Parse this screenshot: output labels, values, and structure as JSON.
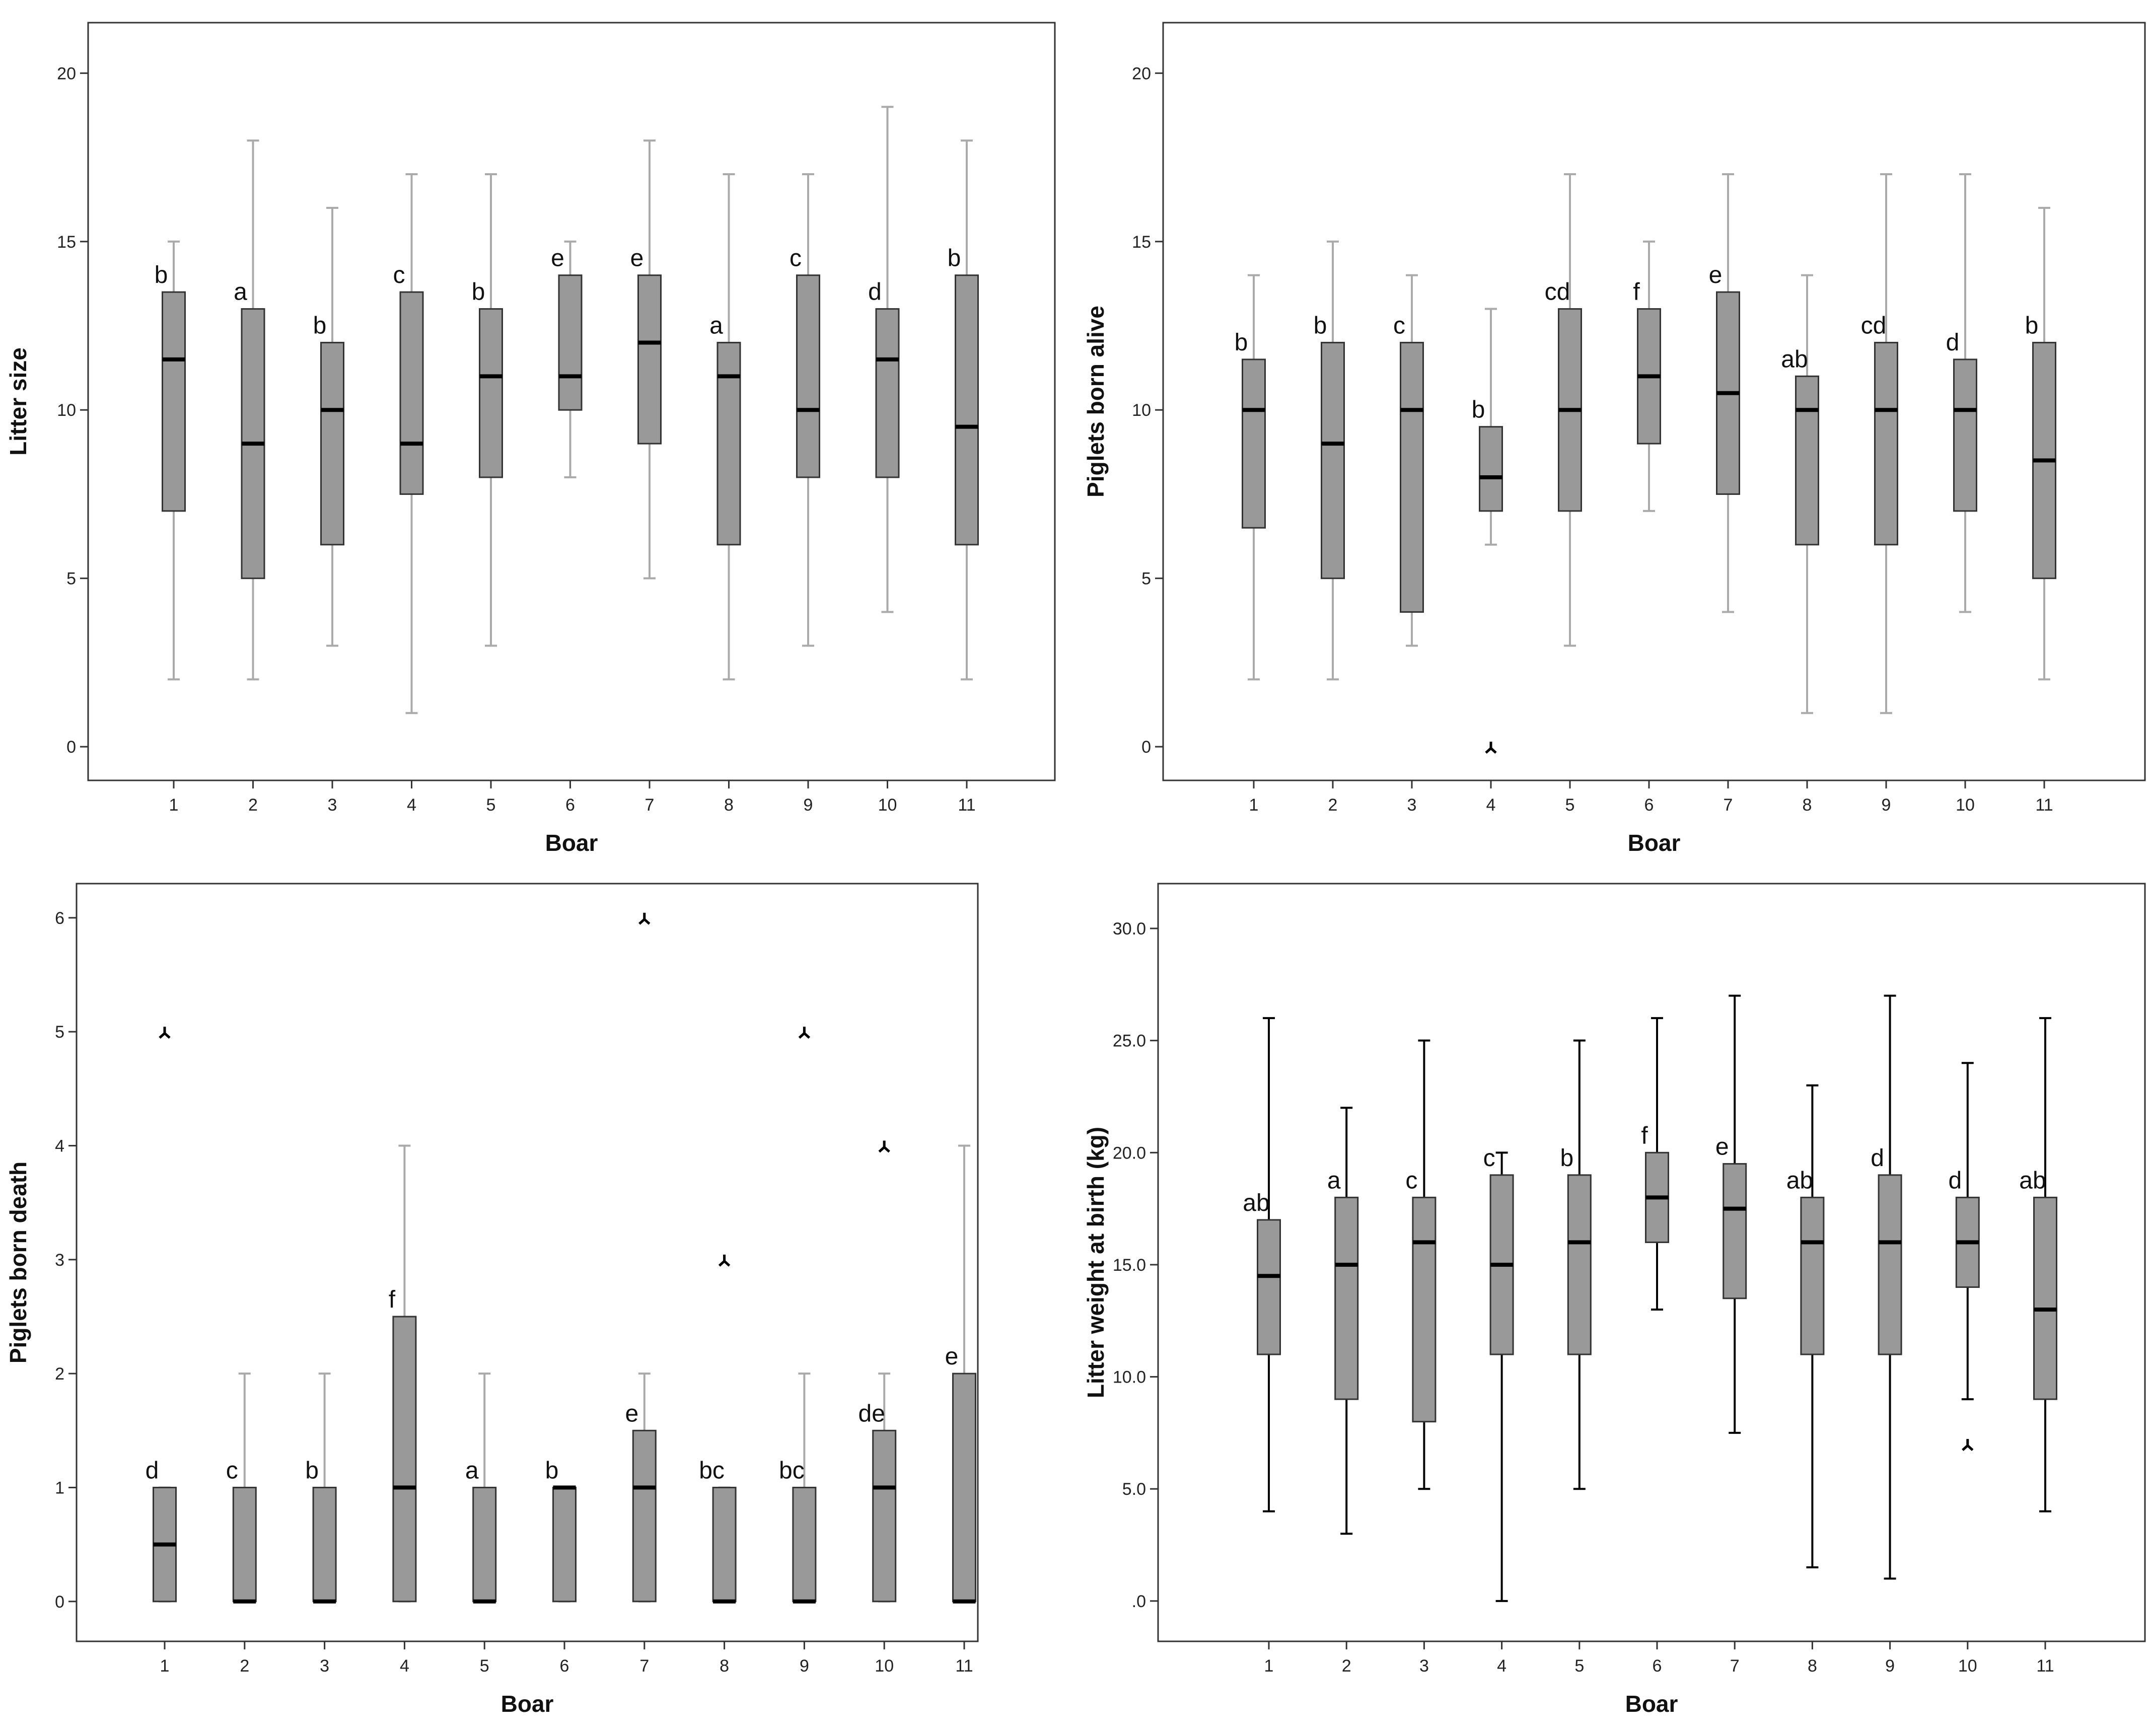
{
  "chart_data": [
    {
      "type": "boxplot",
      "xlabel": "Boar",
      "ylabel": "Litter size",
      "categories": [
        "1",
        "2",
        "3",
        "4",
        "5",
        "6",
        "7",
        "8",
        "9",
        "10",
        "11"
      ],
      "ylim": [
        -1,
        21.5
      ],
      "yticks": [
        0,
        5,
        10,
        15,
        20
      ],
      "ytick_labels": [
        "0",
        "5",
        "10",
        "15",
        "20"
      ],
      "grid": false,
      "whisker_color": "#aaaaaa",
      "boxes": [
        {
          "min": 2,
          "q1": 7,
          "median": 11.5,
          "q3": 13.5,
          "max": 15,
          "letter": "b"
        },
        {
          "min": 2,
          "q1": 5,
          "median": 9,
          "q3": 13,
          "max": 18,
          "letter": "a"
        },
        {
          "min": 3,
          "q1": 6,
          "median": 10,
          "q3": 12,
          "max": 16,
          "letter": "b"
        },
        {
          "min": 1,
          "q1": 7.5,
          "median": 9,
          "q3": 13.5,
          "max": 17,
          "letter": "c"
        },
        {
          "min": 3,
          "q1": 8,
          "median": 11,
          "q3": 13,
          "max": 17,
          "letter": "b"
        },
        {
          "min": 8,
          "q1": 10,
          "median": 11,
          "q3": 14,
          "max": 15,
          "letter": "e"
        },
        {
          "min": 5,
          "q1": 9,
          "median": 12,
          "q3": 14,
          "max": 18,
          "letter": "e"
        },
        {
          "min": 2,
          "q1": 6,
          "median": 11,
          "q3": 12,
          "max": 17,
          "letter": "a"
        },
        {
          "min": 3,
          "q1": 8,
          "median": 10,
          "q3": 14,
          "max": 17,
          "letter": "c"
        },
        {
          "min": 4,
          "q1": 8,
          "median": 11.5,
          "q3": 13,
          "max": 19,
          "letter": "d"
        },
        {
          "min": 2,
          "q1": 6,
          "median": 9.5,
          "q3": 14,
          "max": 18,
          "letter": "b"
        }
      ],
      "outliers": []
    },
    {
      "type": "boxplot",
      "xlabel": "Boar",
      "ylabel": "Piglets born alive",
      "categories": [
        "1",
        "2",
        "3",
        "4",
        "5",
        "6",
        "7",
        "8",
        "9",
        "10",
        "11"
      ],
      "ylim": [
        -1,
        21.5
      ],
      "yticks": [
        0,
        5,
        10,
        15,
        20
      ],
      "ytick_labels": [
        "0",
        "5",
        "10",
        "15",
        "20"
      ],
      "grid": false,
      "whisker_color": "#aaaaaa",
      "boxes": [
        {
          "min": 2,
          "q1": 6.5,
          "median": 10,
          "q3": 11.5,
          "max": 14,
          "letter": "b"
        },
        {
          "min": 2,
          "q1": 5,
          "median": 9,
          "q3": 12,
          "max": 15,
          "letter": "b"
        },
        {
          "min": 3,
          "q1": 4,
          "median": 10,
          "q3": 12,
          "max": 14,
          "letter": "c"
        },
        {
          "min": 6,
          "q1": 7,
          "median": 8,
          "q3": 9.5,
          "max": 13,
          "letter": "b"
        },
        {
          "min": 3,
          "q1": 7,
          "median": 10,
          "q3": 13,
          "max": 17,
          "letter": "cd"
        },
        {
          "min": 7,
          "q1": 9,
          "median": 11,
          "q3": 13,
          "max": 15,
          "letter": "f"
        },
        {
          "min": 4,
          "q1": 7.5,
          "median": 10.5,
          "q3": 13.5,
          "max": 17,
          "letter": "e"
        },
        {
          "min": 1,
          "q1": 6,
          "median": 10,
          "q3": 11,
          "max": 14,
          "letter": "ab"
        },
        {
          "min": 1,
          "q1": 6,
          "median": 10,
          "q3": 12,
          "max": 17,
          "letter": "cd"
        },
        {
          "min": 4,
          "q1": 7,
          "median": 10,
          "q3": 11.5,
          "max": 17,
          "letter": "d"
        },
        {
          "min": 2,
          "q1": 5,
          "median": 8.5,
          "q3": 12,
          "max": 16,
          "letter": "b"
        }
      ],
      "outliers": [
        {
          "boar": "4",
          "value": 0
        }
      ]
    },
    {
      "type": "boxplot",
      "xlabel": "Boar",
      "ylabel": "Piglets born death",
      "categories": [
        "1",
        "2",
        "3",
        "4",
        "5",
        "6",
        "7",
        "8",
        "9",
        "10",
        "11"
      ],
      "ylim": [
        -0.35,
        6.3
      ],
      "yticks": [
        0,
        1,
        2,
        3,
        4,
        5,
        6
      ],
      "ytick_labels": [
        "0",
        "1",
        "2",
        "3",
        "4",
        "5",
        "6"
      ],
      "grid": false,
      "whisker_color": "#aaaaaa",
      "boxes": [
        {
          "min": 0,
          "q1": 0,
          "median": 0.5,
          "q3": 1,
          "max": 1,
          "letter": "d"
        },
        {
          "min": 0,
          "q1": 0,
          "median": 0,
          "q3": 1,
          "max": 2,
          "letter": "c"
        },
        {
          "min": 0,
          "q1": 0,
          "median": 0,
          "q3": 1,
          "max": 2,
          "letter": "b"
        },
        {
          "min": 0,
          "q1": 0,
          "median": 1,
          "q3": 2.5,
          "max": 4,
          "letter": "f"
        },
        {
          "min": 0,
          "q1": 0,
          "median": 0,
          "q3": 1,
          "max": 2,
          "letter": "a"
        },
        {
          "min": 0,
          "q1": 0,
          "median": 1,
          "q3": 1,
          "max": 1,
          "letter": "b"
        },
        {
          "min": 0,
          "q1": 0,
          "median": 1,
          "q3": 1.5,
          "max": 2,
          "letter": "e"
        },
        {
          "min": 0,
          "q1": 0,
          "median": 0,
          "q3": 1,
          "max": 1,
          "letter": "bc"
        },
        {
          "min": 0,
          "q1": 0,
          "median": 0,
          "q3": 1,
          "max": 2,
          "letter": "bc"
        },
        {
          "min": 0,
          "q1": 0,
          "median": 1,
          "q3": 1.5,
          "max": 2,
          "letter": "de"
        },
        {
          "min": 0,
          "q1": 0,
          "median": 0,
          "q3": 2,
          "max": 4,
          "letter": "e"
        }
      ],
      "outliers": [
        {
          "boar": "1",
          "value": 5
        },
        {
          "boar": "7",
          "value": 6
        },
        {
          "boar": "8",
          "value": 3
        },
        {
          "boar": "9",
          "value": 5
        },
        {
          "boar": "10",
          "value": 4
        }
      ]
    },
    {
      "type": "boxplot",
      "xlabel": "Boar",
      "ylabel": "Litter weight at birth (kg)",
      "categories": [
        "1",
        "2",
        "3",
        "4",
        "5",
        "6",
        "7",
        "8",
        "9",
        "10",
        "11"
      ],
      "ylim": [
        -1.8,
        32
      ],
      "yticks": [
        0,
        5,
        10,
        15,
        20,
        25,
        30
      ],
      "ytick_labels": [
        ".0",
        "5.0",
        "10.0",
        "15.0",
        "20.0",
        "25.0",
        "30.0"
      ],
      "grid": false,
      "whisker_color": "#000000",
      "boxes": [
        {
          "min": 4,
          "q1": 11,
          "median": 14.5,
          "q3": 17,
          "max": 26,
          "letter": "ab"
        },
        {
          "min": 3,
          "q1": 9,
          "median": 15,
          "q3": 18,
          "max": 22,
          "letter": "a"
        },
        {
          "min": 5,
          "q1": 8,
          "median": 16,
          "q3": 18,
          "max": 25,
          "letter": "c"
        },
        {
          "min": 0,
          "q1": 11,
          "median": 15,
          "q3": 19,
          "max": 20,
          "letter": "c"
        },
        {
          "min": 5,
          "q1": 11,
          "median": 16,
          "q3": 19,
          "max": 25,
          "letter": "b"
        },
        {
          "min": 13,
          "q1": 16,
          "median": 18,
          "q3": 20,
          "max": 26,
          "letter": "f"
        },
        {
          "min": 7.5,
          "q1": 13.5,
          "median": 17.5,
          "q3": 19.5,
          "max": 27,
          "letter": "e"
        },
        {
          "min": 1.5,
          "q1": 11,
          "median": 16,
          "q3": 18,
          "max": 23,
          "letter": "ab"
        },
        {
          "min": 1,
          "q1": 11,
          "median": 16,
          "q3": 19,
          "max": 27,
          "letter": "d"
        },
        {
          "min": 9,
          "q1": 14,
          "median": 16,
          "q3": 18,
          "max": 24,
          "letter": "d"
        },
        {
          "min": 4,
          "q1": 9,
          "median": 13,
          "q3": 18,
          "max": 26,
          "letter": "ab"
        }
      ],
      "outliers": [
        {
          "boar": "10",
          "value": 7
        }
      ]
    }
  ]
}
